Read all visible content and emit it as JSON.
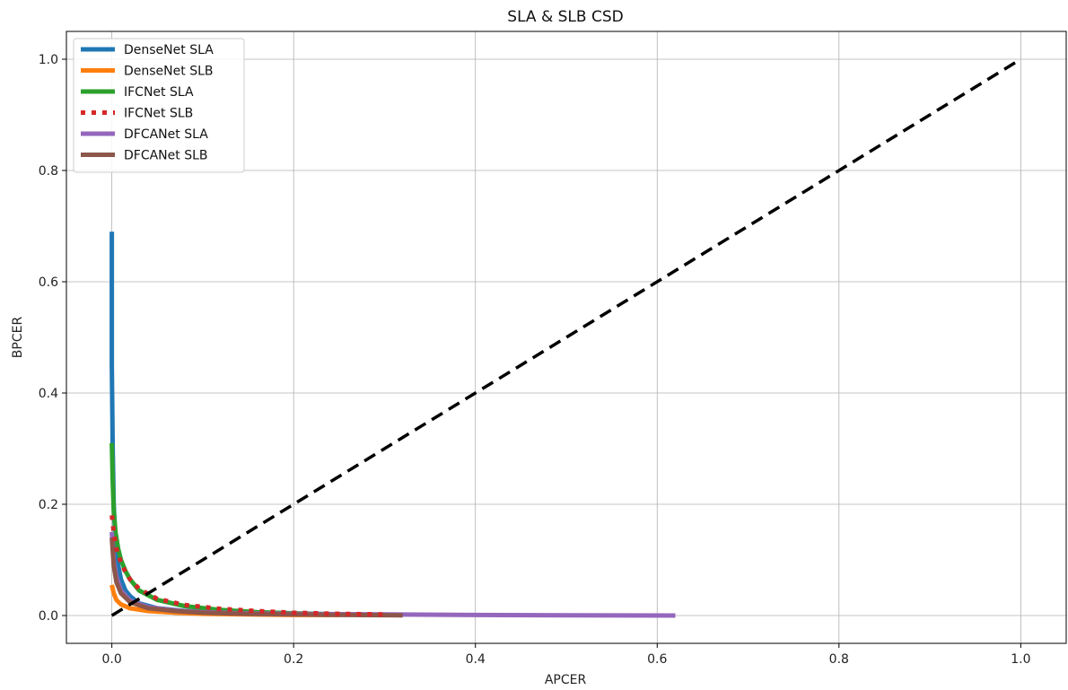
{
  "chart_data": {
    "type": "line",
    "title": "SLA & SLB CSD",
    "xlabel": "APCER",
    "ylabel": "BPCER",
    "xlim": [
      -0.05,
      1.05
    ],
    "ylim": [
      -0.05,
      1.05
    ],
    "xticks": [
      0.0,
      0.2,
      0.4,
      0.6,
      0.8,
      1.0
    ],
    "yticks": [
      0.0,
      0.2,
      0.4,
      0.6,
      0.8,
      1.0
    ],
    "xtick_labels": [
      "0.0",
      "0.2",
      "0.4",
      "0.6",
      "0.8",
      "1.0"
    ],
    "ytick_labels": [
      "0.0",
      "0.2",
      "0.4",
      "0.6",
      "0.8",
      "1.0"
    ],
    "grid": true,
    "legend_position": "top-left",
    "series": [
      {
        "name": "DenseNet SLA",
        "color": "#1f77b4",
        "style": "solid",
        "x": [
          0.0,
          0.0,
          0.001,
          0.002,
          0.004,
          0.007,
          0.01,
          0.015,
          0.02,
          0.03,
          0.05,
          0.08,
          0.12,
          0.16,
          0.2,
          0.24
        ],
        "y": [
          0.69,
          0.45,
          0.3,
          0.2,
          0.13,
          0.09,
          0.065,
          0.045,
          0.035,
          0.022,
          0.013,
          0.008,
          0.005,
          0.003,
          0.002,
          0.001
        ]
      },
      {
        "name": "DenseNet SLB",
        "color": "#ff7f0e",
        "style": "solid",
        "x": [
          0.0,
          0.002,
          0.005,
          0.01,
          0.02,
          0.04,
          0.07,
          0.1,
          0.15,
          0.2,
          0.25
        ],
        "y": [
          0.055,
          0.04,
          0.028,
          0.02,
          0.013,
          0.008,
          0.005,
          0.003,
          0.002,
          0.001,
          0.001
        ]
      },
      {
        "name": "IFCNet SLA",
        "color": "#2ca02c",
        "style": "solid",
        "x": [
          0.0,
          0.001,
          0.002,
          0.004,
          0.007,
          0.01,
          0.015,
          0.02,
          0.03,
          0.05,
          0.08,
          0.12,
          0.16,
          0.2,
          0.25
        ],
        "y": [
          0.31,
          0.24,
          0.19,
          0.15,
          0.12,
          0.1,
          0.08,
          0.065,
          0.045,
          0.028,
          0.017,
          0.01,
          0.006,
          0.004,
          0.002
        ]
      },
      {
        "name": "IFCNet SLB",
        "color": "#d62728",
        "style": "dotted",
        "x": [
          0.0,
          0.002,
          0.005,
          0.01,
          0.015,
          0.02,
          0.03,
          0.05,
          0.08,
          0.12,
          0.16,
          0.2,
          0.25,
          0.3
        ],
        "y": [
          0.18,
          0.15,
          0.12,
          0.095,
          0.078,
          0.065,
          0.048,
          0.03,
          0.019,
          0.012,
          0.008,
          0.005,
          0.003,
          0.002
        ]
      },
      {
        "name": "DFCANet SLA",
        "color": "#9467bd",
        "style": "solid",
        "x": [
          0.0,
          0.002,
          0.005,
          0.01,
          0.02,
          0.04,
          0.07,
          0.1,
          0.15,
          0.2,
          0.3,
          0.4,
          0.5,
          0.62
        ],
        "y": [
          0.15,
          0.1,
          0.07,
          0.045,
          0.027,
          0.015,
          0.009,
          0.006,
          0.004,
          0.003,
          0.002,
          0.001,
          0.0005,
          0.0
        ]
      },
      {
        "name": "DFCANet SLB",
        "color": "#8c564b",
        "style": "solid",
        "x": [
          0.0,
          0.002,
          0.005,
          0.01,
          0.02,
          0.04,
          0.07,
          0.1,
          0.15,
          0.2,
          0.26,
          0.32
        ],
        "y": [
          0.14,
          0.09,
          0.06,
          0.04,
          0.024,
          0.013,
          0.008,
          0.005,
          0.003,
          0.002,
          0.001,
          0.0005
        ]
      },
      {
        "name": "",
        "color": "#000000",
        "style": "dashed",
        "x": [
          0.0,
          1.0
        ],
        "y": [
          0.0,
          1.0
        ]
      }
    ]
  }
}
